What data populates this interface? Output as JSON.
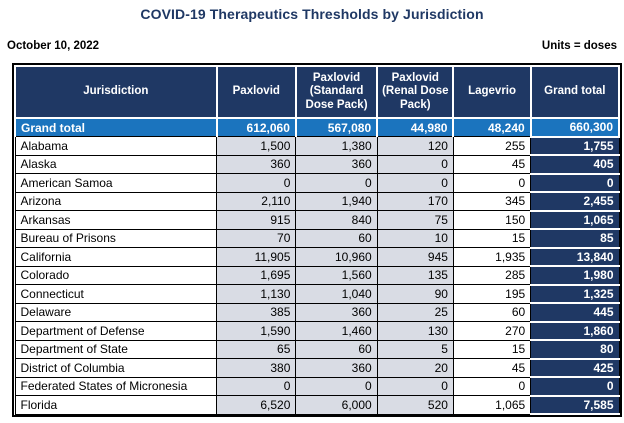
{
  "page": {
    "title": "COVID-19 Therapeutics Thresholds by Jurisdiction",
    "date": "October 10, 2022",
    "units_label": "Units = doses"
  },
  "colors": {
    "title_color": "#1F3864",
    "header_bg": "#1F3864",
    "total_row_bg": "#1B74BE",
    "total_col_bg": "#1F3864",
    "cell_bg": "#D9DCE4"
  },
  "table": {
    "columns": [
      "Jurisdiction",
      "Paxlovid",
      "Paxlovid (Standard Dose Pack)",
      "Paxlovid (Renal Dose Pack)",
      "Lagevrio",
      "Grand total"
    ],
    "grand_total_row": {
      "label": "Grand total",
      "values": [
        "612,060",
        "567,080",
        "44,980",
        "48,240",
        "660,300"
      ]
    },
    "rows": [
      {
        "jurisdiction": "Alabama",
        "values": [
          "1,500",
          "1,380",
          "120",
          "255",
          "1,755"
        ]
      },
      {
        "jurisdiction": "Alaska",
        "values": [
          "360",
          "360",
          "0",
          "45",
          "405"
        ]
      },
      {
        "jurisdiction": "American Samoa",
        "values": [
          "0",
          "0",
          "0",
          "0",
          "0"
        ]
      },
      {
        "jurisdiction": "Arizona",
        "values": [
          "2,110",
          "1,940",
          "170",
          "345",
          "2,455"
        ]
      },
      {
        "jurisdiction": "Arkansas",
        "values": [
          "915",
          "840",
          "75",
          "150",
          "1,065"
        ]
      },
      {
        "jurisdiction": "Bureau of Prisons",
        "values": [
          "70",
          "60",
          "10",
          "15",
          "85"
        ]
      },
      {
        "jurisdiction": "California",
        "values": [
          "11,905",
          "10,960",
          "945",
          "1,935",
          "13,840"
        ]
      },
      {
        "jurisdiction": "Colorado",
        "values": [
          "1,695",
          "1,560",
          "135",
          "285",
          "1,980"
        ]
      },
      {
        "jurisdiction": "Connecticut",
        "values": [
          "1,130",
          "1,040",
          "90",
          "195",
          "1,325"
        ]
      },
      {
        "jurisdiction": "Delaware",
        "values": [
          "385",
          "360",
          "25",
          "60",
          "445"
        ]
      },
      {
        "jurisdiction": "Department of Defense",
        "values": [
          "1,590",
          "1,460",
          "130",
          "270",
          "1,860"
        ]
      },
      {
        "jurisdiction": "Department of State",
        "values": [
          "65",
          "60",
          "5",
          "15",
          "80"
        ]
      },
      {
        "jurisdiction": "District of Columbia",
        "values": [
          "380",
          "360",
          "20",
          "45",
          "425"
        ]
      },
      {
        "jurisdiction": "Federated States of Micronesia",
        "values": [
          "0",
          "0",
          "0",
          "0",
          "0"
        ]
      },
      {
        "jurisdiction": "Florida",
        "values": [
          "6,520",
          "6,000",
          "520",
          "1,065",
          "7,585"
        ]
      }
    ]
  }
}
